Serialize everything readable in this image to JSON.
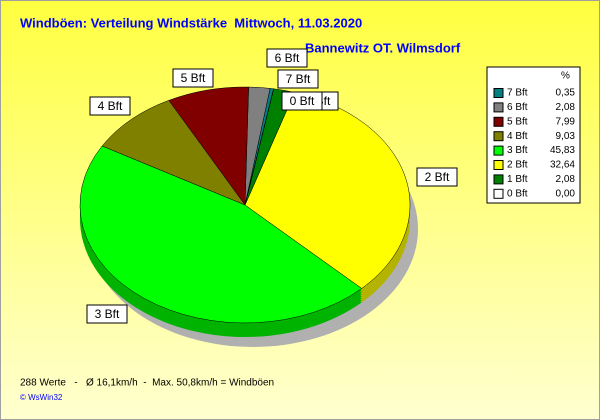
{
  "chart_data": {
    "type": "pie",
    "title": "Windböen: Verteilung Windstärke  Mittwoch, 11.03.2020",
    "subtitle": "Bannewitz OT. Wilmsdorf",
    "legend_header": "%",
    "categories": [
      "7 Bft",
      "6 Bft",
      "5 Bft",
      "4 Bft",
      "3 Bft",
      "2 Bft",
      "1 Bft",
      "0 Bft"
    ],
    "values": [
      0.35,
      2.08,
      7.99,
      9.03,
      45.83,
      32.64,
      2.08,
      0
    ],
    "value_labels": [
      "0,35",
      "2,08",
      "7,99",
      "9,03",
      "45,83",
      "32,64",
      "2,08",
      "0,00"
    ],
    "colors": [
      "#008080",
      "#808080",
      "#800000",
      "#808000",
      "#00ff00",
      "#ffff00",
      "#008000",
      "#ffffff"
    ],
    "legend": "right",
    "footer": "288 Werte   -   Ø 16,1km/h  -  Max. 50,8km/h = Windböen",
    "credit": "© WsWin32"
  }
}
